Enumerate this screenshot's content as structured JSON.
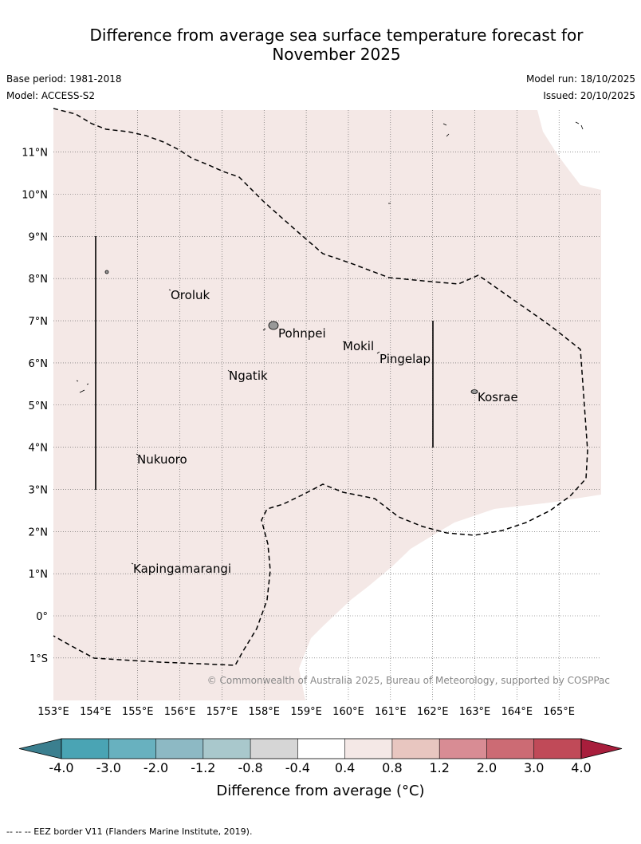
{
  "title": {
    "line1": "Difference from average sea surface temperature forecast for",
    "line2": "November 2025"
  },
  "meta": {
    "base_period": "Base period: 1981-2018",
    "model": "Model: ACCESS-S2",
    "model_run": "Model run: 18/10/2025",
    "issued": "Issued: 20/10/2025"
  },
  "map": {
    "lon_labels": [
      "153°E",
      "154°E",
      "155°E",
      "156°E",
      "157°E",
      "158°E",
      "159°E",
      "160°E",
      "161°E",
      "162°E",
      "163°E",
      "164°E",
      "165°E"
    ],
    "lat_labels": [
      "11°N",
      "10°N",
      "9°N",
      "8°N",
      "7°N",
      "6°N",
      "5°N",
      "4°N",
      "3°N",
      "2°N",
      "1°N",
      "0°",
      "1°S"
    ],
    "places": [
      "Oroluk",
      "Pohnpei",
      "Mokil",
      "Pingelap",
      "Ngatik",
      "Kosrae",
      "Nukuoro",
      "Kapingamarangi"
    ],
    "copyright": "© Commonwealth of Australia 2025, Bureau of Meteorology, supported by COSPPac",
    "anomaly_fill_color": "#f4e8e6"
  },
  "colorbar": {
    "ticks": [
      "-4.0",
      "-3.0",
      "-2.0",
      "-1.2",
      "-0.8",
      "-0.4",
      "0.4",
      "0.8",
      "1.2",
      "2.0",
      "3.0",
      "4.0"
    ],
    "colors": [
      "#3b7f8f",
      "#4aa4b4",
      "#68b1bf",
      "#8db9c4",
      "#a9c8cc",
      "#d6d6d6",
      "#ffffff",
      "#f4e8e6",
      "#e8c6c0",
      "#d88c94",
      "#cc6b74",
      "#c04a58",
      "#a81e3c"
    ],
    "label": "Difference from average (°C)"
  },
  "footnote": "--  --  -- EEZ border V11 (Flanders Marine Institute, 2019)."
}
